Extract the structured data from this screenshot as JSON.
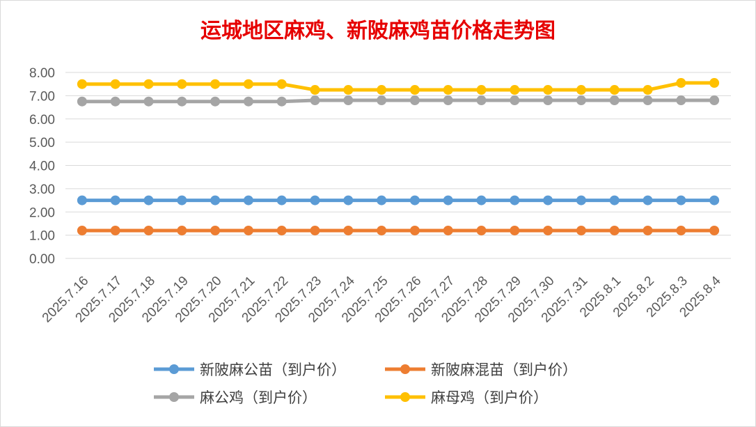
{
  "chart_data": {
    "type": "line",
    "title": "运城地区麻鸡、新陂麻鸡苗价格走势图",
    "xlabel": "",
    "ylabel": "",
    "ylim": [
      0,
      8
    ],
    "ytick_step": 1,
    "y_decimals": 2,
    "grid": true,
    "legend_position": "bottom",
    "categories": [
      "2025.7.16",
      "2025.7.17",
      "2025.7.18",
      "2025.7.19",
      "2025.7.20",
      "2025.7.21",
      "2025.7.22",
      "2025.7.23",
      "2025.7.24",
      "2025.7.25",
      "2025.7.26",
      "2025.7.27",
      "2025.7.28",
      "2025.7.29",
      "2025.7.30",
      "2025.7.31",
      "2025.8.1",
      "2025.8.2",
      "2025.8.3",
      "2025.8.4"
    ],
    "series": [
      {
        "name": "新陂麻公苗（到户价）",
        "color": "#5b9bd5",
        "values": [
          2.5,
          2.5,
          2.5,
          2.5,
          2.5,
          2.5,
          2.5,
          2.5,
          2.5,
          2.5,
          2.5,
          2.5,
          2.5,
          2.5,
          2.5,
          2.5,
          2.5,
          2.5,
          2.5,
          2.5
        ]
      },
      {
        "name": "新陂麻混苗（到户价）",
        "color": "#ed7d31",
        "values": [
          1.2,
          1.2,
          1.2,
          1.2,
          1.2,
          1.2,
          1.2,
          1.2,
          1.2,
          1.2,
          1.2,
          1.2,
          1.2,
          1.2,
          1.2,
          1.2,
          1.2,
          1.2,
          1.2,
          1.2
        ]
      },
      {
        "name": "麻公鸡（到户价）",
        "color": "#a5a5a5",
        "values": [
          6.75,
          6.75,
          6.75,
          6.75,
          6.75,
          6.75,
          6.75,
          6.8,
          6.8,
          6.8,
          6.8,
          6.8,
          6.8,
          6.8,
          6.8,
          6.8,
          6.8,
          6.8,
          6.8,
          6.8
        ]
      },
      {
        "name": "麻母鸡（到户价）",
        "color": "#ffc000",
        "values": [
          7.5,
          7.5,
          7.5,
          7.5,
          7.5,
          7.5,
          7.5,
          7.25,
          7.25,
          7.25,
          7.25,
          7.25,
          7.25,
          7.25,
          7.25,
          7.25,
          7.25,
          7.25,
          7.55,
          7.55
        ]
      }
    ]
  }
}
